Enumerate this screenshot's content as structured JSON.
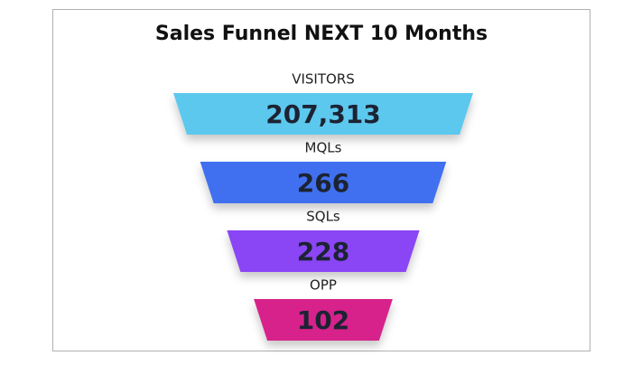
{
  "chart_data": {
    "type": "funnel",
    "title": "Sales Funnel NEXT 10 Months",
    "categories": [
      "VISITORS",
      "MQLs",
      "SQLs",
      "OPP"
    ],
    "values": [
      207313,
      266,
      228,
      102
    ],
    "value_labels": [
      "207,313",
      "266",
      "228",
      "102"
    ],
    "colors": [
      "#5bc8ee",
      "#3f6ff0",
      "#8a45f5",
      "#d6218a"
    ]
  }
}
